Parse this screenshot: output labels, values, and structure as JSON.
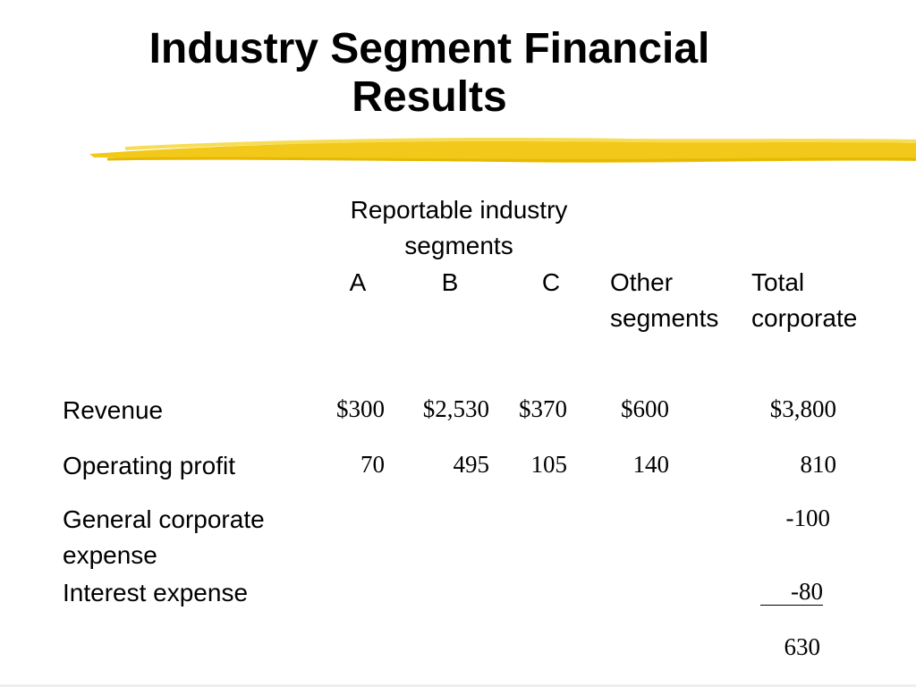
{
  "title": "Industry Segment Financial Results",
  "table": {
    "group_header": "Reportable industry segments",
    "columns": [
      "A",
      "B",
      "C",
      "Other segments",
      "Total corporate"
    ],
    "rows": [
      {
        "label": "Revenue",
        "cells": [
          "$300",
          "$2,530",
          "$370",
          "$600"
        ],
        "total": "$3,800"
      },
      {
        "label": "Operating profit",
        "cells": [
          "70",
          "495",
          "105",
          "140"
        ],
        "total": "810"
      },
      {
        "label": "General corporate expense",
        "total": "-100"
      },
      {
        "label": "Interest expense",
        "total": "-80"
      },
      {
        "total": "630"
      }
    ]
  }
}
